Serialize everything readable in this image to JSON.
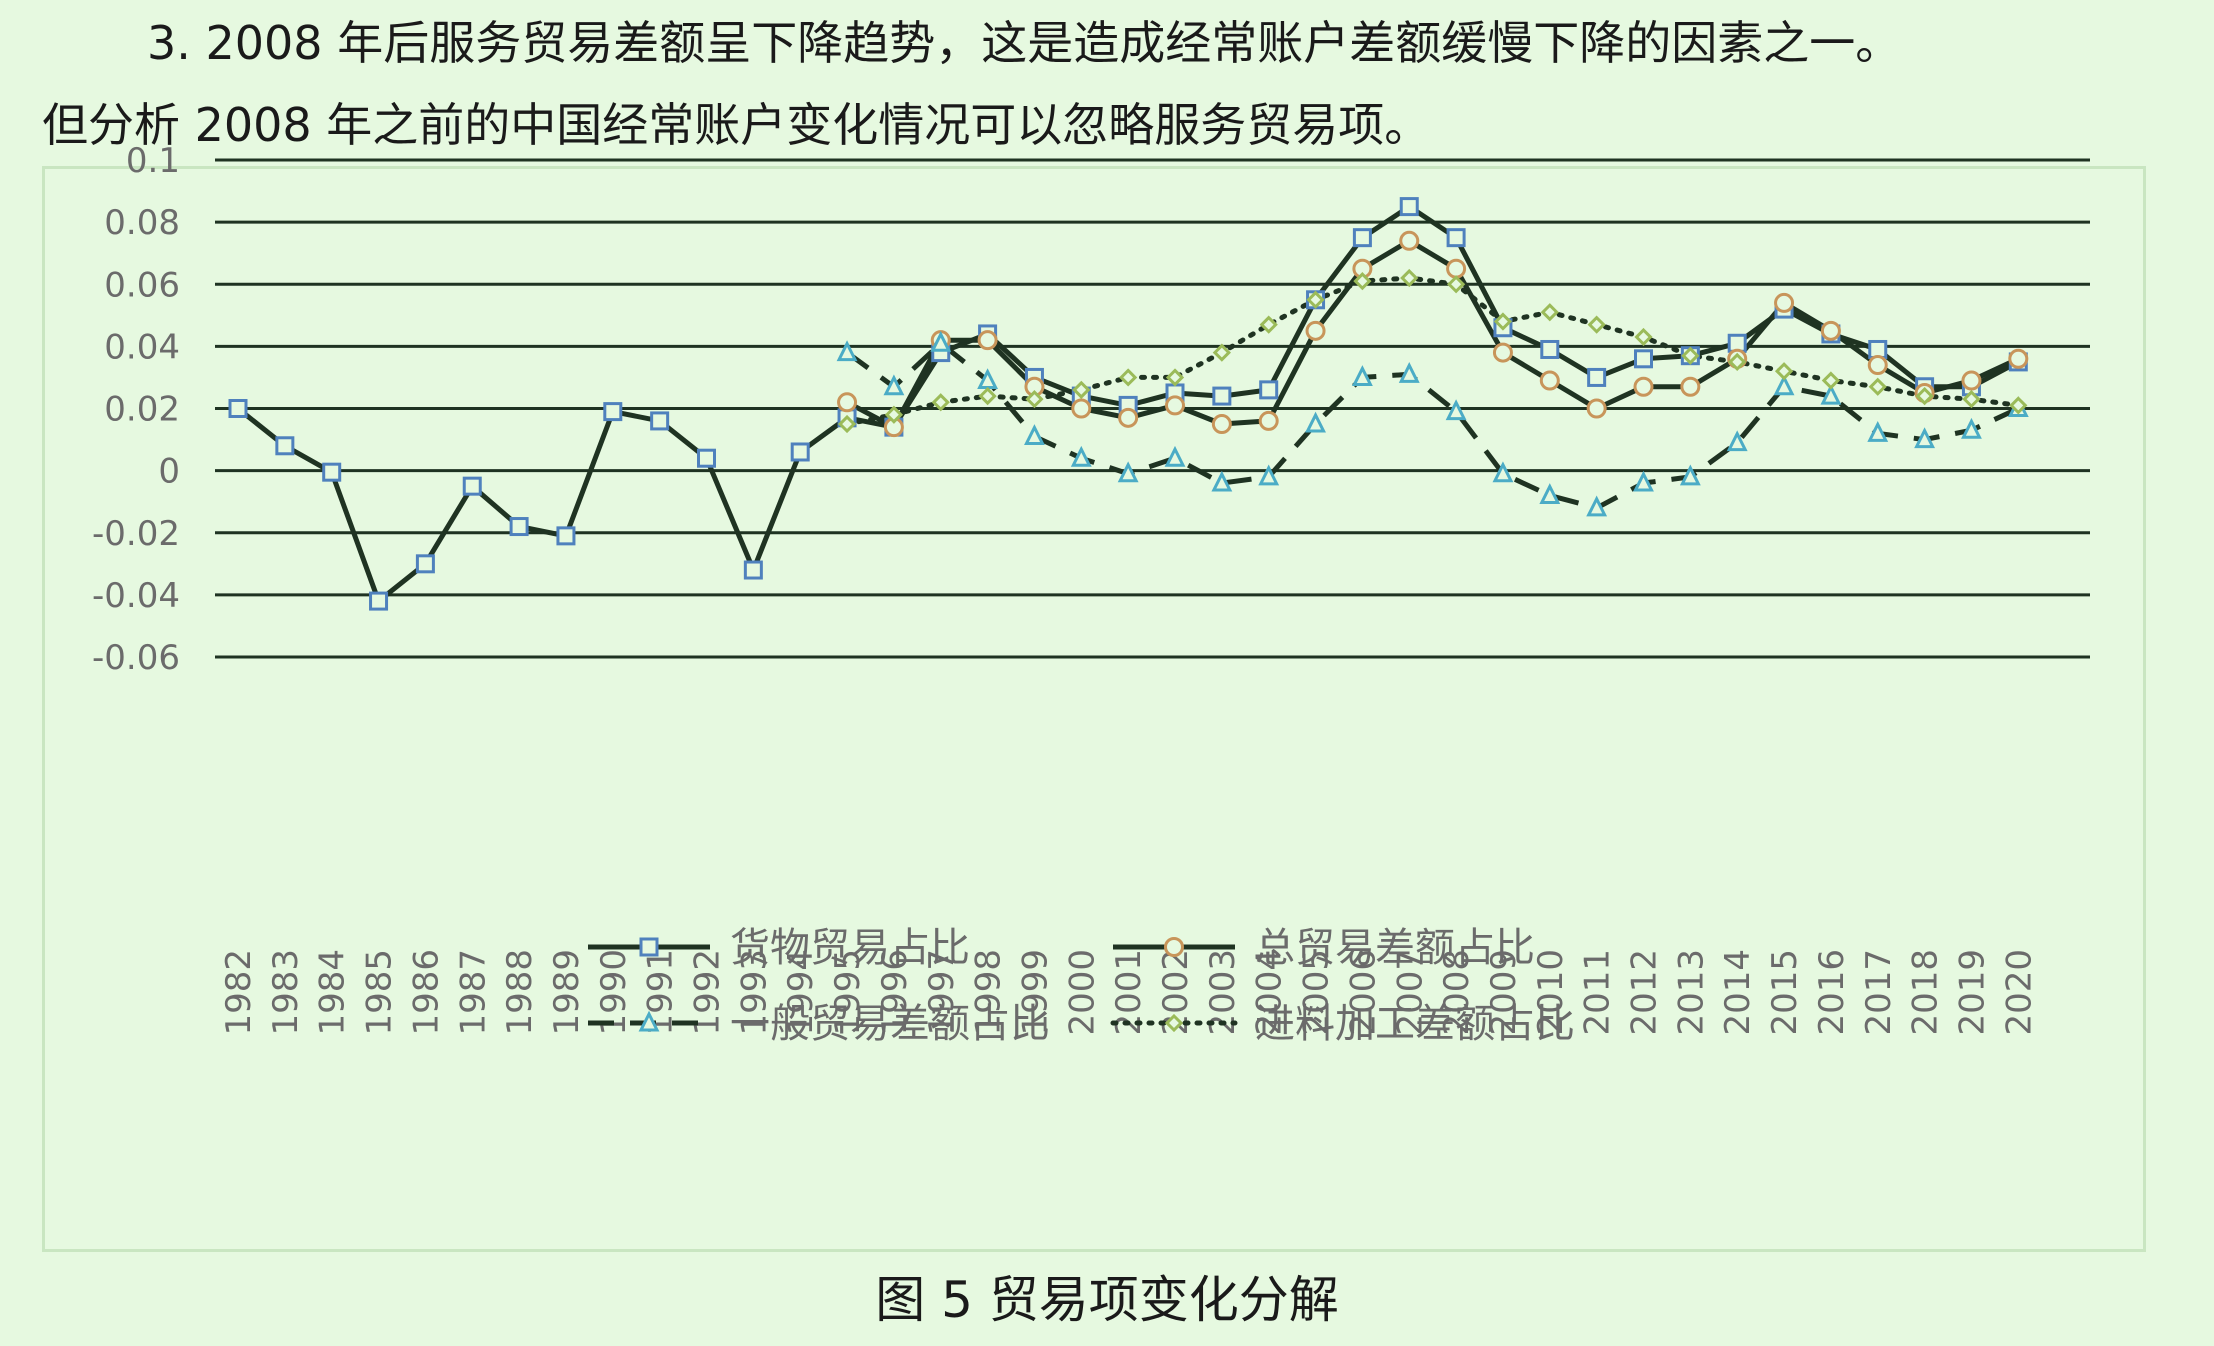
{
  "paragraph": {
    "line1": "3. 2008 年后服务贸易差额呈下降趋势，这是造成经常账户差额缓慢下降的因素之一。",
    "line2": "但分析 2008 年之前的中国经常账户变化情况可以忽略服务贸易项。"
  },
  "caption": "图 5  贸易项变化分解",
  "colors": {
    "line": "#1f3322",
    "grid": "#1f3322",
    "marker_square": "#4f81bd",
    "marker_circle": "#c8955a",
    "marker_triangle": "#4bacc6",
    "marker_diamond": "#9bbb59",
    "frame": "#c9e6c1",
    "background": "#e6f9e0"
  },
  "chart_data": {
    "type": "line",
    "title": "",
    "xlabel": "",
    "ylabel": "",
    "ylim": [
      -0.06,
      0.1
    ],
    "yticks": [
      "0.1",
      "0.08",
      "0.06",
      "0.04",
      "0.02",
      "0",
      "-0.02",
      "-0.04",
      "-0.06"
    ],
    "ytick_values": [
      0.1,
      0.08,
      0.06,
      0.04,
      0.02,
      0,
      -0.02,
      -0.04,
      -0.06
    ],
    "grid": true,
    "legend_position": "bottom",
    "categories": [
      "1982",
      "1983",
      "1984",
      "1985",
      "1986",
      "1987",
      "1988",
      "1989",
      "1990",
      "1991",
      "1992",
      "1993",
      "1994",
      "1995",
      "1996",
      "1997",
      "1998",
      "1999",
      "2000",
      "2001",
      "2002",
      "2003",
      "2004",
      "2005",
      "2006",
      "2007",
      "2008",
      "2009",
      "2010",
      "2011",
      "2012",
      "2013",
      "2014",
      "2015",
      "2016",
      "2017",
      "2018",
      "2019",
      "2020"
    ],
    "series": [
      {
        "name": "货物贸易占比",
        "line_style": "solid",
        "marker": "square",
        "values": [
          0.02,
          0.008,
          -0.0005,
          -0.042,
          -0.03,
          -0.005,
          -0.018,
          -0.021,
          0.019,
          0.016,
          0.004,
          -0.032,
          0.006,
          0.017,
          0.014,
          0.038,
          0.044,
          0.03,
          0.024,
          0.021,
          0.025,
          0.024,
          0.026,
          0.055,
          0.075,
          0.085,
          0.075,
          0.046,
          0.039,
          0.03,
          0.036,
          0.037,
          0.041,
          0.052,
          0.044,
          0.039,
          0.027,
          0.027,
          0.035
        ]
      },
      {
        "name": "总贸易差额占比",
        "line_style": "solid",
        "marker": "circle",
        "values": [
          null,
          null,
          null,
          null,
          null,
          null,
          null,
          null,
          null,
          null,
          null,
          null,
          null,
          0.022,
          0.014,
          0.042,
          0.042,
          0.027,
          0.02,
          0.017,
          0.021,
          0.015,
          0.016,
          0.045,
          0.065,
          0.074,
          0.065,
          0.038,
          0.029,
          0.02,
          0.027,
          0.027,
          0.036,
          0.054,
          0.045,
          0.034,
          0.025,
          0.029,
          0.036
        ]
      },
      {
        "name": "一般贸易差额占比",
        "line_style": "dashed",
        "marker": "triangle",
        "values": [
          null,
          null,
          null,
          null,
          null,
          null,
          null,
          null,
          null,
          null,
          null,
          null,
          null,
          0.038,
          0.027,
          0.041,
          0.029,
          0.011,
          0.004,
          -0.001,
          0.004,
          -0.004,
          -0.002,
          0.015,
          0.03,
          0.031,
          0.019,
          -0.001,
          -0.008,
          -0.012,
          -0.004,
          -0.002,
          0.009,
          0.027,
          0.024,
          0.012,
          0.01,
          0.013,
          0.02
        ]
      },
      {
        "name": "进料加工差额占比",
        "line_style": "dotted",
        "marker": "diamond",
        "values": [
          null,
          null,
          null,
          null,
          null,
          null,
          null,
          null,
          null,
          null,
          null,
          null,
          null,
          0.015,
          0.018,
          0.022,
          0.024,
          0.023,
          0.026,
          0.03,
          0.03,
          0.038,
          0.047,
          0.055,
          0.061,
          0.062,
          0.06,
          0.048,
          0.051,
          0.047,
          0.043,
          0.037,
          0.035,
          0.032,
          0.029,
          0.027,
          0.024,
          0.023,
          0.021
        ]
      }
    ]
  }
}
